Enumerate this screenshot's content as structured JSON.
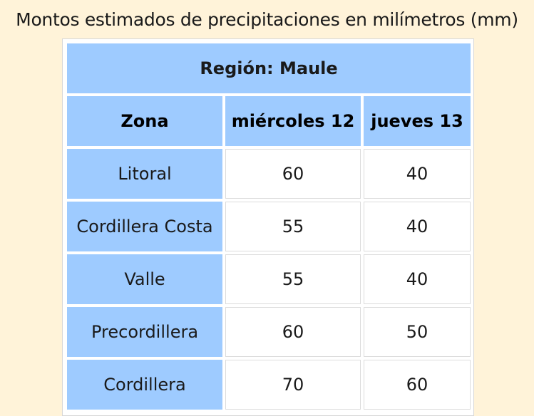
{
  "caption": "Montos estimados de precipitaciones en milímetros (mm)",
  "table": {
    "region": "Región: Maule",
    "headers": [
      "Zona",
      "miércoles 12",
      "jueves 13"
    ],
    "rows": [
      {
        "zona": "Litoral",
        "mie": "60",
        "jue": "40"
      },
      {
        "zona": "Cordillera Costa",
        "mie": "55",
        "jue": "40"
      },
      {
        "zona": "Valle",
        "mie": "55",
        "jue": "40"
      },
      {
        "zona": "Precordillera",
        "mie": "60",
        "jue": "50"
      },
      {
        "zona": "Cordillera",
        "mie": "70",
        "jue": "60"
      }
    ]
  },
  "colors": {
    "background": "#fff3d9",
    "header_cell": "#9ecbff",
    "value_cell": "#ffffff"
  }
}
